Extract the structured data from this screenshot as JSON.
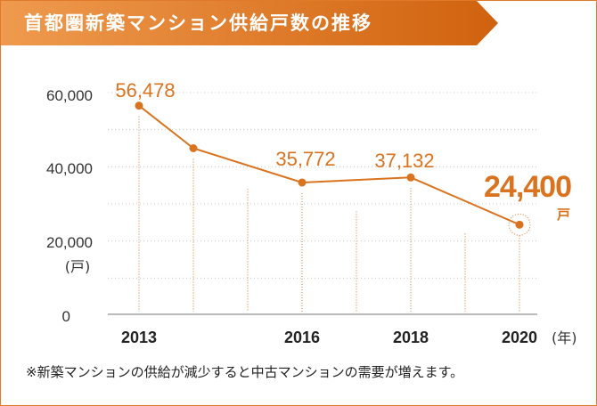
{
  "title": "首都圏新築マンション供給戸数の推移",
  "colors": {
    "accent": "#d9731f",
    "banner_start": "#ef9a4e",
    "banner_end": "#d0620e"
  },
  "chart_data": {
    "type": "line",
    "x": [
      2013,
      2014,
      2016,
      2018,
      2020
    ],
    "values": [
      56478,
      45000,
      35772,
      37132,
      24400
    ],
    "data_labels": {
      "2013": "56,478",
      "2016": "35,772",
      "2018": "37,132",
      "2020": "24,400"
    },
    "highlight_label": "24,400",
    "highlight_unit": "戸",
    "xticks": [
      "2013",
      "2016",
      "2018",
      "2020"
    ],
    "xunit": "(年)",
    "yticks": [
      "0",
      "20,000",
      "40,000",
      "60,000"
    ],
    "yunit": "(戸)",
    "ylim": [
      0,
      60000
    ],
    "xlim": [
      2013,
      2020
    ],
    "grid": true
  },
  "note": "※新築マンションの供給が減少すると中古マンションの需要が増えます。"
}
